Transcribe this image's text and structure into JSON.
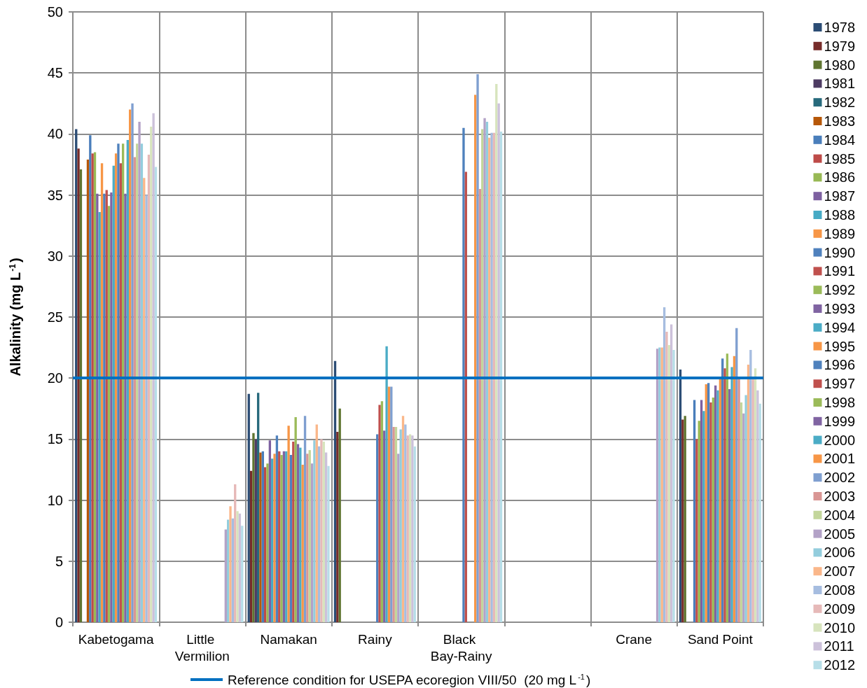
{
  "chart_data": {
    "type": "bar",
    "ylabel": "Alkalinity (mg L$^{-1}$)",
    "categories": [
      "Kabetogama",
      "Little Vermilion",
      "Namakan",
      "Rainy",
      "Black Bay-Rainy",
      null,
      "Crane",
      "Sand Point"
    ],
    "ylim": [
      0,
      50
    ],
    "yticks": [
      0,
      5,
      10,
      15,
      20,
      25,
      30,
      35,
      40,
      45,
      50
    ],
    "grid": true,
    "legend": "right",
    "ref_lines": [
      {
        "axis": "y",
        "value": 20,
        "label": "Reference condition for USEPA ecoregion VIII/50  (20 mg L$^{-1}$)",
        "color": "#0070c0"
      }
    ],
    "series": [
      {
        "name": "1978",
        "color": "#2c4d75",
        "values": [
          40.4,
          null,
          18.7,
          21.4,
          null,
          null,
          null,
          20.7
        ]
      },
      {
        "name": "1979",
        "color": "#772c2a",
        "values": [
          38.8,
          null,
          12.4,
          15.6,
          null,
          null,
          null,
          16.6
        ]
      },
      {
        "name": "1980",
        "color": "#5f7530",
        "values": [
          37.1,
          null,
          15.5,
          17.5,
          null,
          null,
          null,
          16.9
        ]
      },
      {
        "name": "1981",
        "color": "#4d3b62",
        "values": [
          null,
          null,
          15.0,
          null,
          null,
          null,
          null,
          null
        ]
      },
      {
        "name": "1982",
        "color": "#276a7c",
        "values": [
          null,
          null,
          18.8,
          null,
          null,
          null,
          null,
          null
        ]
      },
      {
        "name": "1983",
        "color": "#b65708",
        "values": [
          37.9,
          null,
          13.9,
          null,
          null,
          null,
          null,
          null
        ]
      },
      {
        "name": "1984",
        "color": "#4a7ebb",
        "values": [
          39.9,
          null,
          14.0,
          null,
          null,
          null,
          null,
          18.2
        ]
      },
      {
        "name": "1985",
        "color": "#be4b48",
        "values": [
          38.4,
          null,
          12.7,
          null,
          null,
          null,
          null,
          15.0
        ]
      },
      {
        "name": "1986",
        "color": "#98b954",
        "values": [
          38.5,
          null,
          13.0,
          null,
          null,
          null,
          null,
          16.5
        ]
      },
      {
        "name": "1987",
        "color": "#7d60a0",
        "values": [
          35.1,
          null,
          14.9,
          null,
          null,
          null,
          null,
          18.2
        ]
      },
      {
        "name": "1988",
        "color": "#46aac5",
        "values": [
          33.6,
          null,
          13.4,
          null,
          null,
          null,
          null,
          17.3
        ]
      },
      {
        "name": "1989",
        "color": "#f79646",
        "values": [
          37.6,
          null,
          13.8,
          null,
          null,
          null,
          null,
          19.5
        ]
      },
      {
        "name": "1990",
        "color": "#4f81bd",
        "values": [
          35.1,
          null,
          15.3,
          null,
          null,
          null,
          null,
          19.6
        ]
      },
      {
        "name": "1991",
        "color": "#c0504d",
        "values": [
          35.4,
          null,
          14.0,
          null,
          null,
          null,
          null,
          18.0
        ]
      },
      {
        "name": "1992",
        "color": "#9bbb59",
        "values": [
          34.1,
          null,
          13.7,
          null,
          null,
          null,
          null,
          18.4
        ]
      },
      {
        "name": "1993",
        "color": "#8064a2",
        "values": [
          35.2,
          null,
          14.0,
          null,
          null,
          null,
          null,
          19.4
        ]
      },
      {
        "name": "1994",
        "color": "#4bacc6",
        "values": [
          37.4,
          null,
          14.0,
          null,
          null,
          null,
          null,
          19.0
        ]
      },
      {
        "name": "1995",
        "color": "#f79646",
        "values": [
          38.4,
          null,
          16.1,
          null,
          null,
          null,
          null,
          19.9
        ]
      },
      {
        "name": "1996",
        "color": "#4f81bd",
        "values": [
          39.2,
          null,
          13.7,
          15.4,
          40.5,
          null,
          null,
          21.6
        ]
      },
      {
        "name": "1997",
        "color": "#c0504d",
        "values": [
          37.6,
          null,
          14.8,
          17.8,
          36.9,
          null,
          null,
          20.8
        ]
      },
      {
        "name": "1998",
        "color": "#9bbb59",
        "values": [
          39.2,
          null,
          16.8,
          18.1,
          null,
          null,
          null,
          22.0
        ]
      },
      {
        "name": "1999",
        "color": "#8064a2",
        "values": [
          35.1,
          null,
          14.6,
          15.7,
          null,
          null,
          null,
          19.1
        ]
      },
      {
        "name": "2000",
        "color": "#4bacc6",
        "values": [
          39.5,
          null,
          14.3,
          22.6,
          null,
          null,
          null,
          20.9
        ]
      },
      {
        "name": "2001",
        "color": "#f79646",
        "values": [
          42.0,
          null,
          12.9,
          19.3,
          43.2,
          null,
          null,
          21.8
        ]
      },
      {
        "name": "2002",
        "color": "#7f9fd0",
        "values": [
          42.5,
          null,
          16.9,
          19.3,
          44.9,
          null,
          null,
          24.1
        ]
      },
      {
        "name": "2003",
        "color": "#d99694",
        "values": [
          38.1,
          null,
          13.8,
          16.0,
          35.5,
          null,
          null,
          20.0
        ]
      },
      {
        "name": "2004",
        "color": "#c3d69b",
        "values": [
          39.2,
          null,
          14.1,
          16.0,
          40.4,
          null,
          null,
          18.0
        ]
      },
      {
        "name": "2005",
        "color": "#b3a2c7",
        "values": [
          41.0,
          7.6,
          13.0,
          13.8,
          41.3,
          null,
          22.4,
          17.1
        ]
      },
      {
        "name": "2006",
        "color": "#93cddd",
        "values": [
          39.2,
          8.4,
          14.9,
          15.8,
          41.0,
          null,
          22.5,
          18.6
        ]
      },
      {
        "name": "2007",
        "color": "#fab78a",
        "values": [
          36.4,
          9.5,
          16.2,
          16.9,
          39.7,
          null,
          22.5,
          21.1
        ]
      },
      {
        "name": "2008",
        "color": "#a6bde0",
        "values": [
          35.0,
          8.5,
          14.4,
          16.2,
          40.1,
          null,
          25.8,
          22.3
        ]
      },
      {
        "name": "2009",
        "color": "#e6b9b8",
        "values": [
          38.3,
          11.3,
          15.0,
          15.3,
          40.1,
          null,
          23.8,
          20.0
        ]
      },
      {
        "name": "2010",
        "color": "#d7e4bd",
        "values": [
          40.6,
          9.1,
          14.8,
          15.4,
          44.1,
          null,
          22.7,
          20.8
        ]
      },
      {
        "name": "2011",
        "color": "#ccc1da",
        "values": [
          41.7,
          8.9,
          13.9,
          15.3,
          42.5,
          null,
          24.4,
          19.0
        ]
      },
      {
        "name": "2012",
        "color": "#b7dee8",
        "values": [
          37.3,
          7.9,
          12.8,
          14.4,
          40.2,
          null,
          22.3,
          17.9
        ]
      }
    ]
  }
}
